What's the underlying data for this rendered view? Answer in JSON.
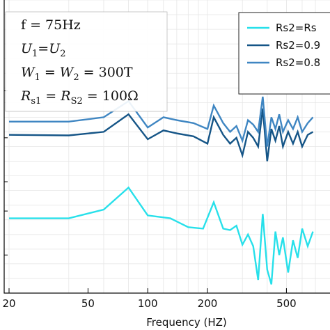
{
  "chart_data": {
    "type": "line",
    "xlabel": "Frequency (HZ)",
    "xscale": "log",
    "xlim": [
      20,
      700
    ],
    "ylim": [
      0,
      1
    ],
    "xticks": [
      {
        "value": 20,
        "label": "20"
      },
      {
        "value": 50,
        "label": "50"
      },
      {
        "value": 100,
        "label": "100"
      },
      {
        "value": 200,
        "label": "200"
      },
      {
        "value": 500,
        "label": "500"
      }
    ],
    "grid": true,
    "legend_position": "top-right",
    "annotations": [
      {
        "id": "f",
        "text": "f = 75Hz"
      },
      {
        "id": "u",
        "main1": "U",
        "sub1": "1",
        "mid": "=U",
        "sub2": "2",
        "tail": ""
      },
      {
        "id": "w",
        "main1": "W",
        "sub1": "1",
        "mid": " = W",
        "sub2": "2",
        "tail": " = 300T"
      },
      {
        "id": "r",
        "main1": "R",
        "sub1": "s1",
        "mid": " = R",
        "sub2": "S2",
        "tail": " = 100Ω"
      }
    ],
    "series": [
      {
        "name": "Rs2=Rs",
        "color": "#27e0ea",
        "points": [
          [
            20,
            0.255
          ],
          [
            40,
            0.255
          ],
          [
            60,
            0.285
          ],
          [
            80,
            0.36
          ],
          [
            100,
            0.265
          ],
          [
            130,
            0.255
          ],
          [
            160,
            0.225
          ],
          [
            190,
            0.22
          ],
          [
            215,
            0.31
          ],
          [
            240,
            0.22
          ],
          [
            260,
            0.215
          ],
          [
            280,
            0.23
          ],
          [
            300,
            0.165
          ],
          [
            320,
            0.2
          ],
          [
            340,
            0.16
          ],
          [
            360,
            0.045
          ],
          [
            380,
            0.27
          ],
          [
            400,
            0.08
          ],
          [
            420,
            0.03
          ],
          [
            440,
            0.21
          ],
          [
            460,
            0.13
          ],
          [
            480,
            0.19
          ],
          [
            510,
            0.07
          ],
          [
            540,
            0.18
          ],
          [
            570,
            0.12
          ],
          [
            600,
            0.22
          ],
          [
            640,
            0.16
          ],
          [
            680,
            0.21
          ]
        ]
      },
      {
        "name": "Rs2=0.9",
        "color": "#155587",
        "points": [
          [
            20,
            0.54
          ],
          [
            40,
            0.538
          ],
          [
            60,
            0.55
          ],
          [
            80,
            0.61
          ],
          [
            100,
            0.525
          ],
          [
            120,
            0.555
          ],
          [
            140,
            0.545
          ],
          [
            170,
            0.535
          ],
          [
            200,
            0.51
          ],
          [
            215,
            0.6
          ],
          [
            240,
            0.54
          ],
          [
            260,
            0.51
          ],
          [
            280,
            0.53
          ],
          [
            300,
            0.47
          ],
          [
            320,
            0.55
          ],
          [
            340,
            0.53
          ],
          [
            360,
            0.5
          ],
          [
            380,
            0.63
          ],
          [
            400,
            0.45
          ],
          [
            420,
            0.56
          ],
          [
            440,
            0.52
          ],
          [
            460,
            0.57
          ],
          [
            480,
            0.5
          ],
          [
            510,
            0.55
          ],
          [
            540,
            0.51
          ],
          [
            570,
            0.55
          ],
          [
            600,
            0.5
          ],
          [
            640,
            0.54
          ],
          [
            680,
            0.55
          ]
        ]
      },
      {
        "name": "Rs2=0.8",
        "color": "#3f86c2",
        "points": [
          [
            20,
            0.585
          ],
          [
            40,
            0.585
          ],
          [
            60,
            0.6
          ],
          [
            80,
            0.655
          ],
          [
            100,
            0.565
          ],
          [
            120,
            0.6
          ],
          [
            140,
            0.59
          ],
          [
            170,
            0.58
          ],
          [
            200,
            0.56
          ],
          [
            215,
            0.64
          ],
          [
            240,
            0.58
          ],
          [
            260,
            0.55
          ],
          [
            280,
            0.57
          ],
          [
            300,
            0.52
          ],
          [
            320,
            0.59
          ],
          [
            340,
            0.575
          ],
          [
            360,
            0.55
          ],
          [
            380,
            0.67
          ],
          [
            400,
            0.5
          ],
          [
            420,
            0.6
          ],
          [
            440,
            0.56
          ],
          [
            460,
            0.61
          ],
          [
            480,
            0.55
          ],
          [
            510,
            0.59
          ],
          [
            540,
            0.56
          ],
          [
            570,
            0.6
          ],
          [
            600,
            0.55
          ],
          [
            640,
            0.58
          ],
          [
            680,
            0.6
          ]
        ]
      }
    ]
  }
}
